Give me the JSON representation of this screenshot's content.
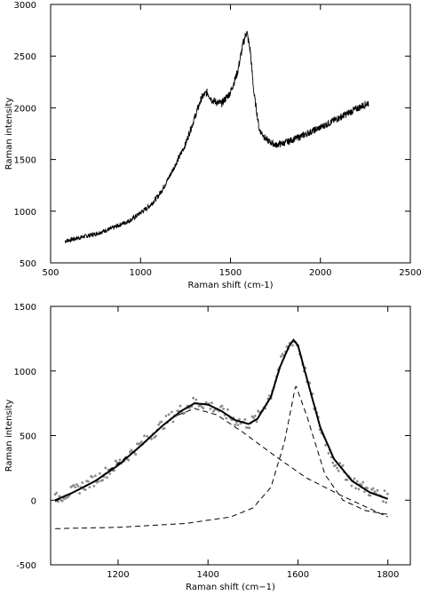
{
  "chart_data": [
    {
      "type": "line",
      "title": "",
      "xlabel": "Raman shift (cm-1)",
      "ylabel": "Raman intensity",
      "xlim": [
        500,
        2500
      ],
      "ylim": [
        500,
        3000
      ],
      "xticks": [
        500,
        1000,
        1500,
        2000,
        2500
      ],
      "yticks": [
        500,
        1000,
        1500,
        2000,
        2500,
        3000
      ],
      "grid": false,
      "series": [
        {
          "x": [
            580,
            650,
            750,
            850,
            950,
            1050,
            1100,
            1150,
            1200,
            1250,
            1300,
            1340,
            1370,
            1400,
            1450,
            1500,
            1540,
            1570,
            1590,
            1610,
            1630,
            1660,
            1700,
            1750,
            1800,
            1900,
            2000,
            2100,
            2200,
            2270
          ],
          "y": [
            710,
            740,
            780,
            840,
            920,
            1050,
            1150,
            1300,
            1470,
            1650,
            1900,
            2100,
            2150,
            2070,
            2040,
            2150,
            2350,
            2620,
            2740,
            2550,
            2150,
            1790,
            1690,
            1640,
            1660,
            1730,
            1810,
            1900,
            1990,
            2050
          ]
        }
      ]
    },
    {
      "type": "scatter",
      "title": "",
      "xlabel": "Raman shift (cm−1)",
      "ylabel": "Raman intensity",
      "xlim": [
        1050,
        1850
      ],
      "ylim": [
        -500,
        1500
      ],
      "xticks": [
        1200,
        1400,
        1600,
        1800
      ],
      "yticks": [
        -500,
        0,
        500,
        1000,
        1500
      ],
      "grid": false,
      "series": [
        {
          "kind": "data points",
          "x": [
            1060,
            1100,
            1150,
            1200,
            1250,
            1300,
            1340,
            1370,
            1400,
            1430,
            1460,
            1490,
            1510,
            1540,
            1560,
            1580,
            1590,
            1600,
            1620,
            1650,
            1680,
            1720,
            1760,
            1800
          ],
          "y": [
            10,
            70,
            160,
            280,
            430,
            590,
            700,
            760,
            740,
            690,
            620,
            590,
            640,
            820,
            1050,
            1200,
            1240,
            1200,
            950,
            550,
            300,
            150,
            70,
            20
          ]
        },
        {
          "kind": "fit",
          "x": [
            1060,
            1100,
            1150,
            1200,
            1250,
            1300,
            1340,
            1370,
            1400,
            1430,
            1460,
            1490,
            1510,
            1540,
            1560,
            1580,
            1590,
            1600,
            1620,
            1650,
            1680,
            1720,
            1760,
            1800
          ],
          "y": [
            0,
            60,
            150,
            270,
            420,
            580,
            690,
            750,
            740,
            690,
            620,
            590,
            630,
            800,
            1030,
            1190,
            1240,
            1200,
            940,
            560,
            320,
            150,
            60,
            10
          ]
        },
        {
          "kind": "component 1",
          "x": [
            1060,
            1150,
            1250,
            1320,
            1370,
            1420,
            1480,
            1550,
            1620,
            1700,
            1800
          ],
          "y": [
            -10,
            150,
            420,
            640,
            710,
            660,
            520,
            340,
            170,
            30,
            -130
          ]
        },
        {
          "kind": "component 2",
          "x": [
            1060,
            1200,
            1350,
            1450,
            1500,
            1540,
            1570,
            1595,
            1620,
            1660,
            1700,
            1750,
            1800
          ],
          "y": [
            -220,
            -210,
            -180,
            -130,
            -60,
            100,
            450,
            890,
            650,
            200,
            0,
            -80,
            -110
          ]
        }
      ]
    }
  ]
}
